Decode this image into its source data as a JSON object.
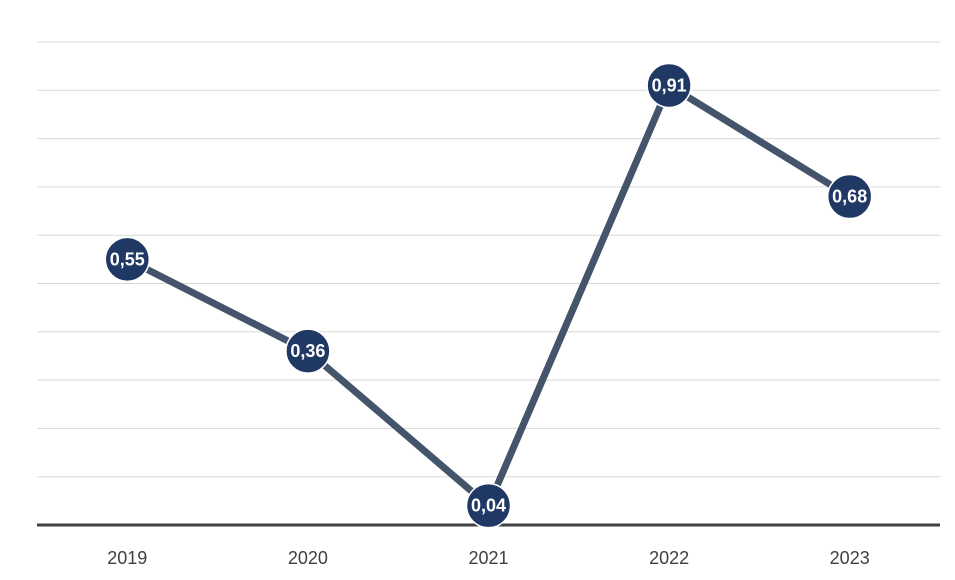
{
  "chart_data": {
    "type": "line",
    "categories": [
      "2019",
      "2020",
      "2021",
      "2022",
      "2023"
    ],
    "series": [
      {
        "values": [
          0.55,
          0.36,
          0.04,
          0.91,
          0.68
        ]
      }
    ],
    "data_labels": [
      "0,55",
      "0,36",
      "0,04",
      "0,91",
      "0,68"
    ],
    "ylim": [
      0,
      1.0
    ],
    "grid": true,
    "legend": "none",
    "colors": {
      "line": "#44546a",
      "marker": "#203864",
      "grid": "#d9d9d9",
      "axis": "#404040"
    }
  }
}
